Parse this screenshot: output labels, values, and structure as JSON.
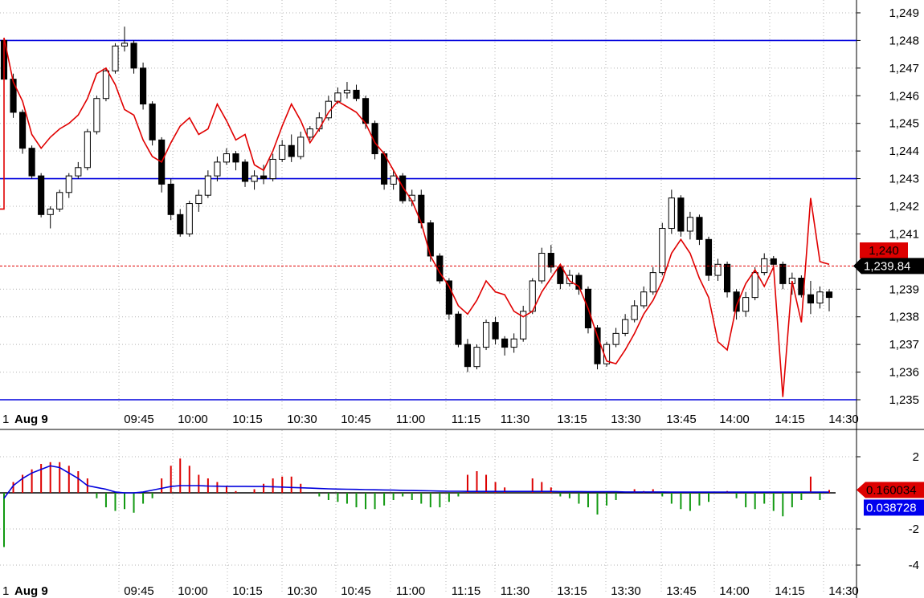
{
  "colors": {
    "up": "#ffffff",
    "down": "#000000",
    "candle_outline": "#000000",
    "overlay_line": "#e00000",
    "level_line": "#0000dd",
    "grid": "#b4b4b4",
    "hist_pos": "#dd0000",
    "hist_neg": "#119911",
    "signal_line": "#0000dd",
    "price_badge_red": "#dd0000",
    "price_badge_dark": "#000000",
    "osc_badge_blue": "#0000ee"
  },
  "chart_data": [
    {
      "type": "candlestick",
      "x_ticks": [
        "Aug 9",
        "09:45",
        "10:00",
        "10:15",
        "10:30",
        "10:45",
        "11:00",
        "11:15",
        "11:30",
        "13:15",
        "13:30",
        "13:45",
        "14:00",
        "14:15",
        "14:30"
      ],
      "y_ticks": [
        "1,249",
        "1,248",
        "1,247",
        "1,246",
        "1,245",
        "1,244",
        "1,243",
        "1,242",
        "1,241",
        "1,239",
        "1,238",
        "1,237",
        "1,236",
        "1,235"
      ],
      "ylim": [
        1234.9,
        1249.4
      ],
      "grid": true,
      "ohlc": [
        [
          1248.0,
          1248.1,
          1246.4,
          1246.6
        ],
        [
          1246.6,
          1246.8,
          1245.2,
          1245.4
        ],
        [
          1245.4,
          1245.5,
          1243.9,
          1244.1
        ],
        [
          1244.1,
          1244.2,
          1243.0,
          1243.1
        ],
        [
          1243.1,
          1243.2,
          1241.6,
          1241.7
        ],
        [
          1241.7,
          1242.0,
          1241.2,
          1241.9
        ],
        [
          1241.9,
          1242.6,
          1241.8,
          1242.5
        ],
        [
          1242.5,
          1243.2,
          1242.3,
          1243.1
        ],
        [
          1243.1,
          1243.6,
          1243.0,
          1243.4
        ],
        [
          1243.4,
          1244.8,
          1243.3,
          1244.7
        ],
        [
          1244.7,
          1246.0,
          1244.6,
          1245.9
        ],
        [
          1245.9,
          1247.0,
          1245.8,
          1246.9
        ],
        [
          1246.9,
          1247.9,
          1246.8,
          1247.8
        ],
        [
          1247.8,
          1248.5,
          1247.6,
          1247.9
        ],
        [
          1247.9,
          1248.0,
          1246.8,
          1247.0
        ],
        [
          1247.0,
          1247.2,
          1245.5,
          1245.7
        ],
        [
          1245.7,
          1245.8,
          1244.2,
          1244.4
        ],
        [
          1244.4,
          1244.5,
          1242.5,
          1242.8
        ],
        [
          1242.8,
          1243.0,
          1241.5,
          1241.7
        ],
        [
          1241.7,
          1241.9,
          1240.9,
          1241.0
        ],
        [
          1241.0,
          1242.2,
          1240.9,
          1242.1
        ],
        [
          1242.1,
          1242.6,
          1241.8,
          1242.4
        ],
        [
          1242.4,
          1243.3,
          1242.3,
          1243.1
        ],
        [
          1243.1,
          1243.8,
          1242.9,
          1243.6
        ],
        [
          1243.6,
          1244.1,
          1243.5,
          1243.9
        ],
        [
          1243.9,
          1244.0,
          1243.3,
          1243.6
        ],
        [
          1243.6,
          1243.7,
          1242.7,
          1242.9
        ],
        [
          1242.9,
          1243.3,
          1242.6,
          1243.1
        ],
        [
          1243.1,
          1243.5,
          1242.8,
          1243.0
        ],
        [
          1243.0,
          1243.9,
          1242.9,
          1243.7
        ],
        [
          1243.7,
          1244.4,
          1243.6,
          1244.2
        ],
        [
          1244.2,
          1244.6,
          1243.6,
          1243.8
        ],
        [
          1243.8,
          1244.7,
          1243.7,
          1244.5
        ],
        [
          1244.5,
          1244.9,
          1244.4,
          1244.8
        ],
        [
          1244.8,
          1245.4,
          1244.7,
          1245.2
        ],
        [
          1245.2,
          1246.0,
          1245.1,
          1245.8
        ],
        [
          1245.8,
          1246.3,
          1245.7,
          1246.1
        ],
        [
          1246.1,
          1246.5,
          1245.9,
          1246.2
        ],
        [
          1246.2,
          1246.4,
          1245.8,
          1245.9
        ],
        [
          1245.9,
          1246.0,
          1244.8,
          1245.0
        ],
        [
          1245.0,
          1245.1,
          1243.7,
          1243.9
        ],
        [
          1243.9,
          1244.0,
          1242.6,
          1242.8
        ],
        [
          1242.8,
          1243.3,
          1242.6,
          1243.1
        ],
        [
          1243.1,
          1243.2,
          1242.1,
          1242.2
        ],
        [
          1242.2,
          1242.6,
          1242.0,
          1242.4
        ],
        [
          1242.4,
          1242.6,
          1241.2,
          1241.4
        ],
        [
          1241.4,
          1241.5,
          1240.0,
          1240.2
        ],
        [
          1240.2,
          1240.3,
          1239.2,
          1239.3
        ],
        [
          1239.3,
          1239.4,
          1237.9,
          1238.1
        ],
        [
          1238.1,
          1238.2,
          1236.9,
          1237.0
        ],
        [
          1237.0,
          1237.2,
          1236.0,
          1236.2
        ],
        [
          1236.2,
          1237.0,
          1236.1,
          1236.9
        ],
        [
          1236.9,
          1237.9,
          1236.8,
          1237.8
        ],
        [
          1237.8,
          1238.0,
          1237.0,
          1237.2
        ],
        [
          1237.2,
          1237.3,
          1236.6,
          1236.9
        ],
        [
          1236.9,
          1237.4,
          1236.7,
          1237.2
        ],
        [
          1237.2,
          1238.4,
          1237.1,
          1238.2
        ],
        [
          1238.2,
          1239.4,
          1238.1,
          1239.3
        ],
        [
          1239.3,
          1240.5,
          1239.2,
          1240.3
        ],
        [
          1240.3,
          1240.6,
          1239.6,
          1239.8
        ],
        [
          1239.8,
          1239.9,
          1239.0,
          1239.2
        ],
        [
          1239.2,
          1239.7,
          1239.1,
          1239.5
        ],
        [
          1239.5,
          1239.6,
          1238.8,
          1239.0
        ],
        [
          1239.0,
          1239.1,
          1237.4,
          1237.6
        ],
        [
          1237.6,
          1237.7,
          1236.1,
          1236.3
        ],
        [
          1236.3,
          1237.1,
          1236.2,
          1237.0
        ],
        [
          1237.0,
          1237.6,
          1236.9,
          1237.4
        ],
        [
          1237.4,
          1238.1,
          1237.3,
          1237.9
        ],
        [
          1237.9,
          1238.6,
          1237.8,
          1238.4
        ],
        [
          1238.4,
          1239.1,
          1238.3,
          1238.9
        ],
        [
          1238.9,
          1239.8,
          1238.8,
          1239.6
        ],
        [
          1239.6,
          1241.4,
          1239.5,
          1241.2
        ],
        [
          1241.2,
          1242.6,
          1241.0,
          1242.3
        ],
        [
          1242.3,
          1242.4,
          1240.9,
          1241.1
        ],
        [
          1241.1,
          1241.8,
          1240.8,
          1241.6
        ],
        [
          1241.6,
          1241.7,
          1240.6,
          1240.8
        ],
        [
          1240.8,
          1240.9,
          1239.3,
          1239.5
        ],
        [
          1239.5,
          1240.1,
          1239.3,
          1239.9
        ],
        [
          1239.9,
          1240.0,
          1238.7,
          1238.9
        ],
        [
          1238.9,
          1239.0,
          1237.9,
          1238.2
        ],
        [
          1238.2,
          1238.9,
          1238.0,
          1238.7
        ],
        [
          1238.7,
          1239.8,
          1238.6,
          1239.6
        ],
        [
          1239.6,
          1240.3,
          1239.5,
          1240.1
        ],
        [
          1240.1,
          1240.2,
          1239.7,
          1239.9
        ],
        [
          1239.9,
          1240.0,
          1239.0,
          1239.2
        ],
        [
          1239.2,
          1239.6,
          1238.8,
          1239.4
        ],
        [
          1239.4,
          1239.5,
          1238.7,
          1238.8
        ],
        [
          1238.8,
          1239.3,
          1238.1,
          1238.5
        ],
        [
          1238.5,
          1239.1,
          1238.3,
          1238.9
        ],
        [
          1238.9,
          1239.0,
          1238.2,
          1238.7
        ]
      ],
      "overlay_line": [
        1248.1,
        1246.5,
        1245.8,
        1244.6,
        1244.1,
        1244.5,
        1244.8,
        1245.0,
        1245.3,
        1245.9,
        1246.8,
        1247.0,
        1246.4,
        1245.5,
        1245.3,
        1244.4,
        1243.8,
        1243.6,
        1244.3,
        1244.9,
        1245.2,
        1244.6,
        1244.8,
        1245.7,
        1245.1,
        1244.4,
        1244.6,
        1243.5,
        1243.3,
        1244.0,
        1244.9,
        1245.7,
        1245.1,
        1244.3,
        1244.8,
        1245.4,
        1245.8,
        1245.6,
        1245.4,
        1245.0,
        1244.3,
        1243.9,
        1243.3,
        1242.7,
        1242.2,
        1241.4,
        1240.2,
        1239.6,
        1239.1,
        1238.4,
        1238.1,
        1238.6,
        1239.3,
        1238.9,
        1238.8,
        1238.2,
        1238.0,
        1238.2,
        1238.9,
        1239.4,
        1239.9,
        1239.3,
        1239.1,
        1238.3,
        1237.3,
        1236.4,
        1236.3,
        1236.8,
        1237.4,
        1238.1,
        1238.6,
        1239.3,
        1240.3,
        1240.8,
        1240.3,
        1239.4,
        1238.7,
        1237.1,
        1236.8,
        1238.4,
        1239.2,
        1239.7,
        1239.1,
        1239.8,
        1235.1,
        1239.3,
        1237.8,
        1242.3,
        1240.0,
        1239.9
      ],
      "levels": [
        1248.0,
        1243.0,
        1235.0
      ],
      "last_close": 1239.84,
      "labels": {
        "price_badge_red": "1,240",
        "price_badge_dark": "1,239.84"
      }
    },
    {
      "type": "bar",
      "x_ticks": [
        "Aug 9",
        "09:45",
        "10:00",
        "10:15",
        "10:30",
        "10:45",
        "11:00",
        "11:15",
        "11:30",
        "13:15",
        "13:30",
        "13:45",
        "14:00",
        "14:15",
        "14:30"
      ],
      "y_ticks": [
        "2",
        "-2",
        "-4"
      ],
      "ylim": [
        -4.5,
        2.9
      ],
      "grid": true,
      "histogram": [
        -3.0,
        0.6,
        1.0,
        1.3,
        1.6,
        1.7,
        1.7,
        1.5,
        1.2,
        0.8,
        -0.3,
        -0.8,
        -1.0,
        -0.9,
        -1.1,
        -0.6,
        -0.3,
        0.8,
        1.5,
        1.9,
        1.5,
        1.0,
        0.8,
        0.6,
        0.4,
        0.1,
        0.0,
        0.2,
        0.5,
        0.8,
        0.9,
        0.9,
        0.5,
        0.0,
        -0.2,
        -0.4,
        -0.5,
        -0.6,
        -0.8,
        -0.9,
        -0.9,
        -0.7,
        -0.4,
        -0.2,
        -0.4,
        -0.6,
        -0.8,
        -0.8,
        -0.5,
        -0.2,
        1.0,
        1.2,
        1.0,
        0.6,
        0.3,
        0.0,
        0.0,
        0.8,
        0.6,
        0.3,
        -0.2,
        -0.3,
        -0.6,
        -0.8,
        -1.2,
        -0.7,
        -0.4,
        0.0,
        0.2,
        0.1,
        0.2,
        -0.2,
        -0.6,
        -0.9,
        -1.0,
        -0.7,
        -0.5,
        0.0,
        0.1,
        -0.3,
        -0.8,
        -0.9,
        -0.6,
        -1.0,
        -1.3,
        -0.8,
        -0.4,
        0.9,
        -0.4,
        0.16
      ],
      "signal_line": [
        -0.3,
        0.4,
        0.8,
        1.1,
        1.3,
        1.5,
        1.4,
        1.1,
        0.8,
        0.4,
        0.3,
        0.2,
        0.05,
        0.0,
        0.0,
        0.05,
        0.15,
        0.25,
        0.35,
        0.4,
        0.4,
        0.4,
        0.38,
        0.37,
        0.36,
        0.36,
        0.36,
        0.35,
        0.35,
        0.34,
        0.32,
        0.3,
        0.28,
        0.26,
        0.24,
        0.22,
        0.21,
        0.2,
        0.19,
        0.18,
        0.17,
        0.16,
        0.15,
        0.14,
        0.13,
        0.12,
        0.11,
        0.1,
        0.09,
        0.09,
        0.08,
        0.08,
        0.08,
        0.08,
        0.08,
        0.08,
        0.08,
        0.08,
        0.08,
        0.08,
        0.07,
        0.07,
        0.07,
        0.06,
        0.06,
        0.06,
        0.06,
        0.05,
        0.05,
        0.05,
        0.05,
        0.05,
        0.04,
        0.04,
        0.04,
        0.04,
        0.04,
        0.04,
        0.04,
        0.04,
        0.04,
        0.04,
        0.04,
        0.04,
        0.04,
        0.04,
        0.04,
        0.04,
        0.04,
        0.03872
      ],
      "labels": {
        "osc_badge_red": "0.160034",
        "osc_badge_blue": "0.038728"
      }
    }
  ]
}
